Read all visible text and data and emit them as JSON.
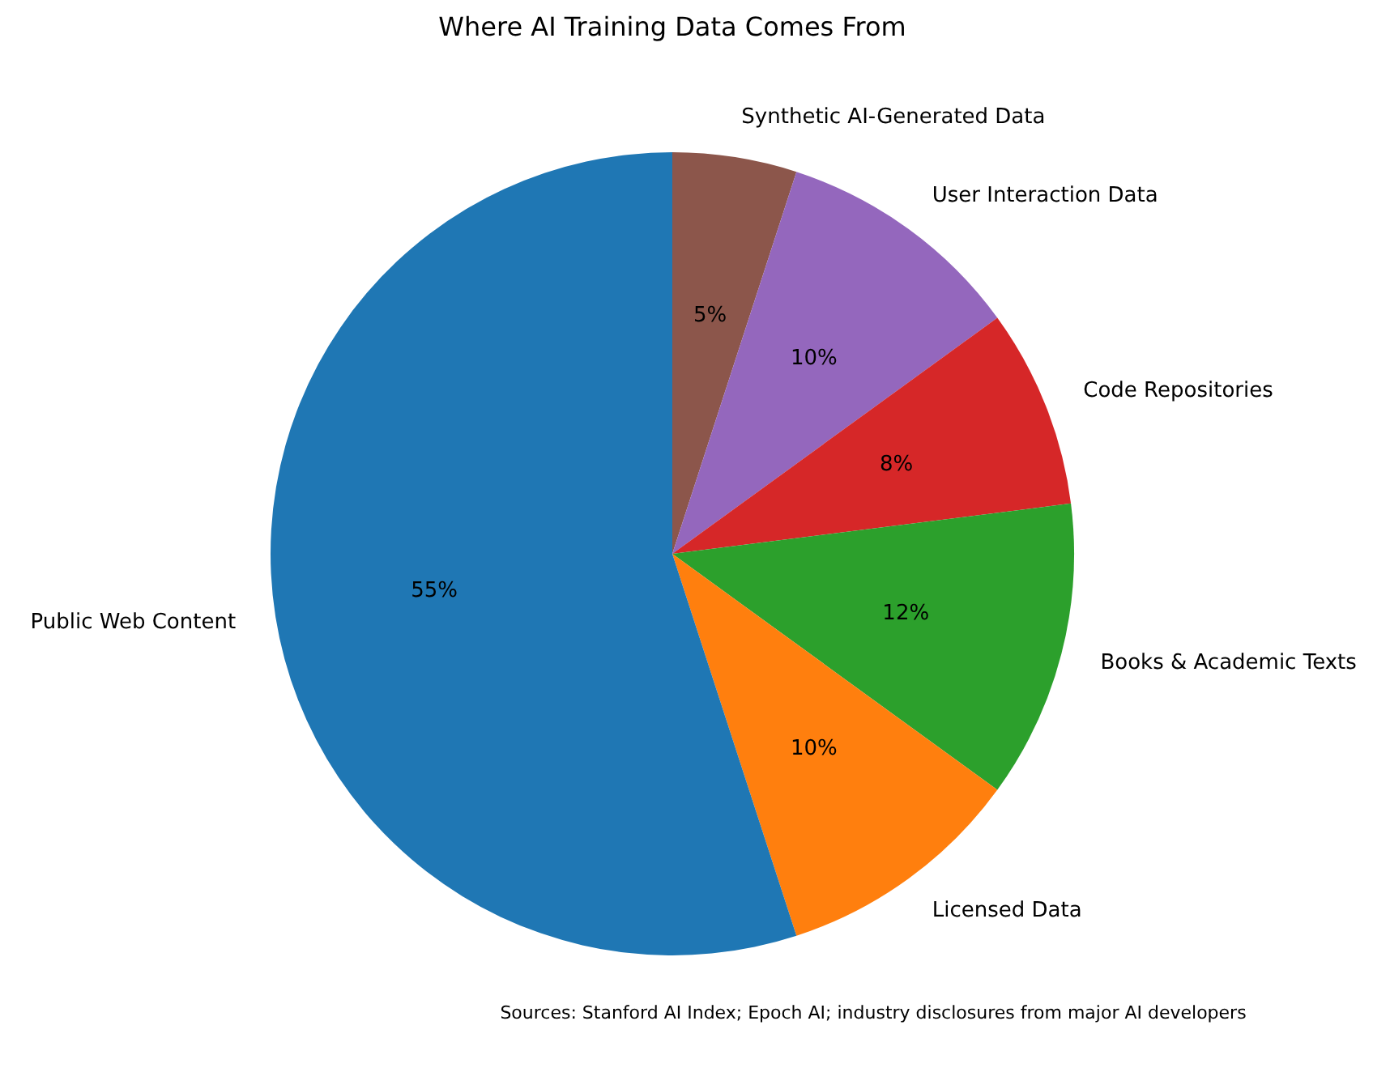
{
  "chart_data": {
    "type": "pie",
    "title": "Where AI Training Data Comes From",
    "categories": [
      "Synthetic AI-Generated Data",
      "User Interaction Data",
      "Code Repositories",
      "Books & Academic Texts",
      "Licensed Data",
      "Public Web Content"
    ],
    "values": [
      5,
      10,
      8,
      12,
      10,
      55
    ],
    "value_labels": [
      "5%",
      "10%",
      "8%",
      "12%",
      "10%",
      "55%"
    ],
    "colors": [
      "#8c564b",
      "#9467bd",
      "#d62728",
      "#2ca02c",
      "#ff7f0e",
      "#1f77b4"
    ],
    "legend": false,
    "annotations": [
      "Sources: Stanford AI Index; Epoch AI; industry disclosures from major AI developers"
    ]
  }
}
